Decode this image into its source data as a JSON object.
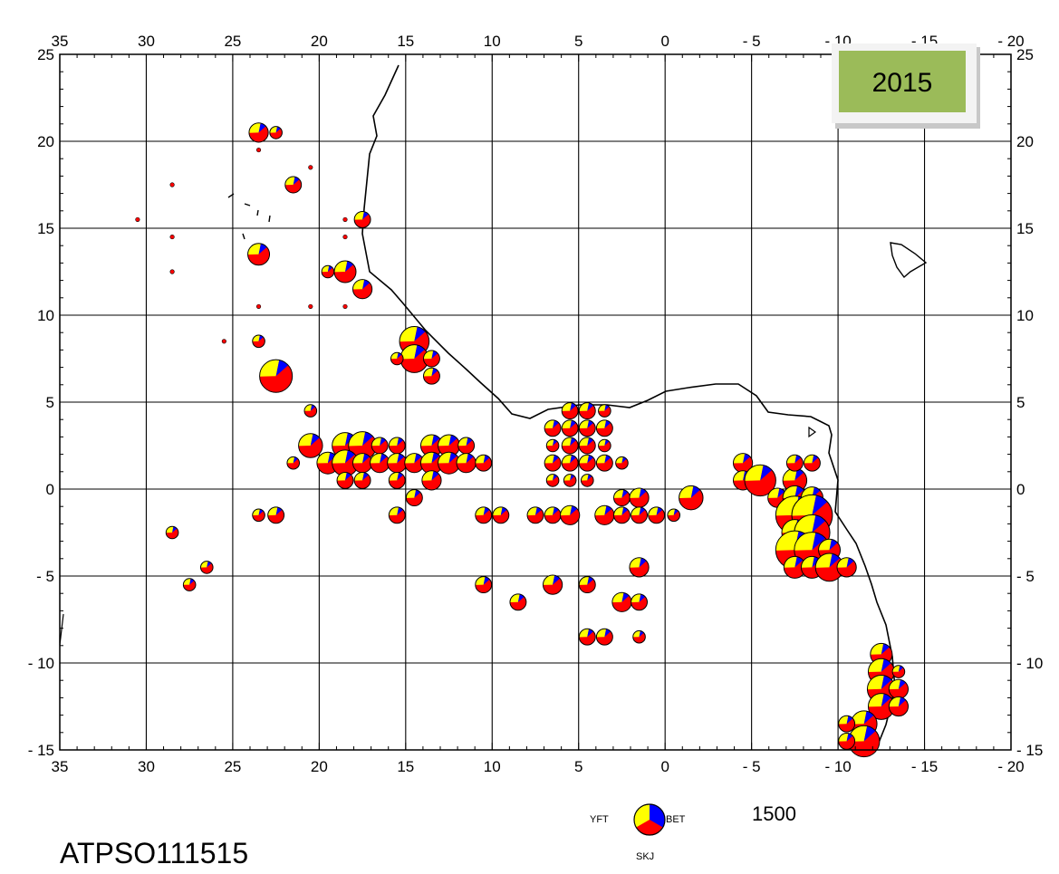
{
  "year_label": "2015",
  "caption": "ATPSO111515",
  "legend": {
    "species": [
      {
        "code": "YFT",
        "color": "#ffff00"
      },
      {
        "code": "BET",
        "color": "#0000ff"
      },
      {
        "code": "SKJ",
        "color": "#ff0000"
      }
    ],
    "reference_value": "1500"
  },
  "colors": {
    "yft": "#ffff00",
    "bet": "#0000ff",
    "skj": "#ff0000",
    "year_box": "#9bbb59"
  },
  "axes": {
    "lon_ticks": [
      35,
      30,
      25,
      20,
      15,
      10,
      5,
      0,
      -5,
      -10,
      -15,
      -20
    ],
    "lon_labels": [
      "35",
      "30",
      "25",
      "20",
      "15",
      "10",
      "5",
      "0",
      "- 5",
      "- 10",
      "- 15",
      "- 20"
    ],
    "lat_ticks": [
      25,
      20,
      15,
      10,
      5,
      0,
      -5,
      -10,
      -15
    ],
    "lat_labels": [
      "25",
      "20",
      "15",
      "10",
      "5",
      "0",
      "- 5",
      "- 10",
      "- 15"
    ],
    "lon_range": [
      35,
      -20
    ],
    "lat_range": [
      25,
      -15
    ],
    "grid": true
  },
  "chart_data": {
    "type": "scatter",
    "description_units": "longitude/latitude in displayed axis units; size = relative catch",
    "points": [
      {
        "x": 23.5,
        "y": 20.5,
        "s": 3
      },
      {
        "x": 22.5,
        "y": 20.5,
        "s": 1
      },
      {
        "x": 23.5,
        "y": 19.5,
        "s": 0.5
      },
      {
        "x": 20.5,
        "y": 18.5,
        "s": 0.5
      },
      {
        "x": 21.5,
        "y": 17.5,
        "s": 2
      },
      {
        "x": 28.5,
        "y": 17.5,
        "s": 0.5
      },
      {
        "x": 30.5,
        "y": 15.5,
        "s": 0.5
      },
      {
        "x": 18.5,
        "y": 15.5,
        "s": 0.5
      },
      {
        "x": 17.5,
        "y": 15.5,
        "s": 2
      },
      {
        "x": 28.5,
        "y": 14.5,
        "s": 0.5
      },
      {
        "x": 18.5,
        "y": 14.5,
        "s": 0.5
      },
      {
        "x": 23.5,
        "y": 13.5,
        "s": 4
      },
      {
        "x": 18.5,
        "y": 12.5,
        "s": 4
      },
      {
        "x": 28.5,
        "y": 12.5,
        "s": 0.5
      },
      {
        "x": 19.5,
        "y": 12.5,
        "s": 1
      },
      {
        "x": 17.5,
        "y": 11.5,
        "s": 3
      },
      {
        "x": 20.5,
        "y": 10.5,
        "s": 0.5
      },
      {
        "x": 18.5,
        "y": 10.5,
        "s": 0.5
      },
      {
        "x": 23.5,
        "y": 10.5,
        "s": 0.5
      },
      {
        "x": 25.5,
        "y": 8.5,
        "s": 0.5
      },
      {
        "x": 23.5,
        "y": 8.5,
        "s": 1
      },
      {
        "x": 14.5,
        "y": 8.5,
        "s": 8
      },
      {
        "x": 14.5,
        "y": 7.5,
        "s": 7
      },
      {
        "x": 13.5,
        "y": 7.5,
        "s": 2
      },
      {
        "x": 15.5,
        "y": 7.5,
        "s": 1
      },
      {
        "x": 22.5,
        "y": 6.5,
        "s": 10
      },
      {
        "x": 13.5,
        "y": 6.5,
        "s": 2
      },
      {
        "x": 20.5,
        "y": 4.5,
        "s": 1
      },
      {
        "x": 20.5,
        "y": 2.5,
        "s": 5
      },
      {
        "x": 18.5,
        "y": 2.5,
        "s": 6
      },
      {
        "x": 17.5,
        "y": 2.5,
        "s": 7
      },
      {
        "x": 13.5,
        "y": 2.5,
        "s": 4
      },
      {
        "x": 12.5,
        "y": 2.5,
        "s": 4
      },
      {
        "x": 11.5,
        "y": 2.5,
        "s": 2
      },
      {
        "x": 16.5,
        "y": 2.5,
        "s": 2
      },
      {
        "x": 15.5,
        "y": 2.5,
        "s": 2
      },
      {
        "x": 19.5,
        "y": 1.5,
        "s": 4
      },
      {
        "x": 18.5,
        "y": 1.5,
        "s": 6
      },
      {
        "x": 17.5,
        "y": 1.5,
        "s": 3
      },
      {
        "x": 16.5,
        "y": 1.5,
        "s": 3
      },
      {
        "x": 15.5,
        "y": 1.5,
        "s": 3
      },
      {
        "x": 14.5,
        "y": 1.5,
        "s": 3
      },
      {
        "x": 13.5,
        "y": 1.5,
        "s": 4
      },
      {
        "x": 12.5,
        "y": 1.5,
        "s": 4
      },
      {
        "x": 11.5,
        "y": 1.5,
        "s": 3
      },
      {
        "x": 10.5,
        "y": 1.5,
        "s": 2
      },
      {
        "x": 21.5,
        "y": 1.5,
        "s": 1
      },
      {
        "x": 13.5,
        "y": 0.5,
        "s": 3
      },
      {
        "x": 15.5,
        "y": 0.5,
        "s": 2
      },
      {
        "x": 18.5,
        "y": 0.5,
        "s": 2
      },
      {
        "x": 17.5,
        "y": 0.5,
        "s": 2
      },
      {
        "x": 14.5,
        "y": -0.5,
        "s": 2
      },
      {
        "x": 5.5,
        "y": 4.5,
        "s": 2
      },
      {
        "x": 4.5,
        "y": 4.5,
        "s": 2
      },
      {
        "x": 3.5,
        "y": 4.5,
        "s": 1
      },
      {
        "x": 6.5,
        "y": 3.5,
        "s": 2
      },
      {
        "x": 5.5,
        "y": 3.5,
        "s": 2
      },
      {
        "x": 4.5,
        "y": 3.5,
        "s": 2
      },
      {
        "x": 3.5,
        "y": 3.5,
        "s": 2
      },
      {
        "x": 6.5,
        "y": 2.5,
        "s": 1
      },
      {
        "x": 5.5,
        "y": 2.5,
        "s": 2
      },
      {
        "x": 4.5,
        "y": 2.5,
        "s": 2
      },
      {
        "x": 3.5,
        "y": 2.5,
        "s": 1
      },
      {
        "x": 6.5,
        "y": 1.5,
        "s": 2
      },
      {
        "x": 5.5,
        "y": 1.5,
        "s": 2
      },
      {
        "x": 4.5,
        "y": 1.5,
        "s": 2
      },
      {
        "x": 3.5,
        "y": 1.5,
        "s": 2
      },
      {
        "x": 2.5,
        "y": 1.5,
        "s": 1
      },
      {
        "x": 6.5,
        "y": 0.5,
        "s": 1
      },
      {
        "x": 5.5,
        "y": 0.5,
        "s": 1
      },
      {
        "x": 4.5,
        "y": 0.5,
        "s": 1
      },
      {
        "x": 2.5,
        "y": -0.5,
        "s": 2
      },
      {
        "x": 1.5,
        "y": -0.5,
        "s": 3
      },
      {
        "x": -1.5,
        "y": -0.5,
        "s": 4
      },
      {
        "x": 7.5,
        "y": -1.5,
        "s": 2
      },
      {
        "x": 6.5,
        "y": -1.5,
        "s": 2
      },
      {
        "x": 5.5,
        "y": -1.5,
        "s": 3
      },
      {
        "x": 3.5,
        "y": -1.5,
        "s": 3
      },
      {
        "x": 2.5,
        "y": -1.5,
        "s": 2
      },
      {
        "x": 1.5,
        "y": -1.5,
        "s": 2
      },
      {
        "x": 0.5,
        "y": -1.5,
        "s": 2
      },
      {
        "x": -0.5,
        "y": -1.5,
        "s": 1
      },
      {
        "x": 9.5,
        "y": -1.5,
        "s": 2
      },
      {
        "x": 10.5,
        "y": -1.5,
        "s": 2
      },
      {
        "x": 1.5,
        "y": -4.5,
        "s": 3
      },
      {
        "x": 6.5,
        "y": -5.5,
        "s": 3
      },
      {
        "x": 10.5,
        "y": -5.5,
        "s": 2
      },
      {
        "x": 4.5,
        "y": -5.5,
        "s": 2
      },
      {
        "x": 8.5,
        "y": -6.5,
        "s": 2
      },
      {
        "x": 2.5,
        "y": -6.5,
        "s": 3
      },
      {
        "x": 1.5,
        "y": -6.5,
        "s": 2
      },
      {
        "x": 3.5,
        "y": -8.5,
        "s": 2
      },
      {
        "x": 4.5,
        "y": -8.5,
        "s": 2
      },
      {
        "x": 1.5,
        "y": -8.5,
        "s": 1
      },
      {
        "x": -4.5,
        "y": 1.5,
        "s": 3
      },
      {
        "x": -4.5,
        "y": 0.5,
        "s": 3
      },
      {
        "x": -5.5,
        "y": 0.5,
        "s": 9
      },
      {
        "x": -7.5,
        "y": 0.5,
        "s": 5
      },
      {
        "x": -8.5,
        "y": 1.5,
        "s": 2
      },
      {
        "x": -7.5,
        "y": 1.5,
        "s": 2
      },
      {
        "x": -6.5,
        "y": -0.5,
        "s": 3
      },
      {
        "x": -7.5,
        "y": -0.5,
        "s": 5
      },
      {
        "x": -8.5,
        "y": -0.5,
        "s": 4
      },
      {
        "x": -7.5,
        "y": -1.5,
        "s": 14
      },
      {
        "x": -8.5,
        "y": -1.5,
        "s": 16
      },
      {
        "x": -7.5,
        "y": -2.5,
        "s": 6
      },
      {
        "x": -8.5,
        "y": -2.5,
        "s": 12
      },
      {
        "x": -7.5,
        "y": -3.5,
        "s": 14
      },
      {
        "x": -8.5,
        "y": -3.5,
        "s": 12
      },
      {
        "x": -9.5,
        "y": -3.5,
        "s": 4
      },
      {
        "x": -7.5,
        "y": -4.5,
        "s": 4
      },
      {
        "x": -8.5,
        "y": -4.5,
        "s": 4
      },
      {
        "x": -9.5,
        "y": -4.5,
        "s": 7
      },
      {
        "x": -10.5,
        "y": -4.5,
        "s": 3
      },
      {
        "x": -1.5,
        "y": -0.5,
        "s": 3
      },
      {
        "x": -1.5,
        "y": -0.5,
        "s": 5
      },
      {
        "x": -12.5,
        "y": -9.5,
        "s": 4
      },
      {
        "x": -12.5,
        "y": -10.5,
        "s": 6
      },
      {
        "x": -12.5,
        "y": -11.5,
        "s": 7
      },
      {
        "x": -13.5,
        "y": -11.5,
        "s": 3
      },
      {
        "x": -12.5,
        "y": -12.5,
        "s": 6
      },
      {
        "x": -13.5,
        "y": -12.5,
        "s": 3
      },
      {
        "x": -11.5,
        "y": -13.5,
        "s": 6
      },
      {
        "x": -11.5,
        "y": -14.5,
        "s": 9
      },
      {
        "x": -10.5,
        "y": -13.5,
        "s": 2
      },
      {
        "x": -10.5,
        "y": -14.5,
        "s": 2
      },
      {
        "x": -13.5,
        "y": -10.5,
        "s": 1
      },
      {
        "x": 28.5,
        "y": -2.5,
        "s": 1
      },
      {
        "x": 26.5,
        "y": -4.5,
        "s": 1
      },
      {
        "x": 27.5,
        "y": -5.5,
        "s": 1
      },
      {
        "x": 22.5,
        "y": -1.5,
        "s": 2
      },
      {
        "x": 23.5,
        "y": -1.5,
        "s": 1
      },
      {
        "x": 15.5,
        "y": -1.5,
        "s": 2
      }
    ]
  }
}
